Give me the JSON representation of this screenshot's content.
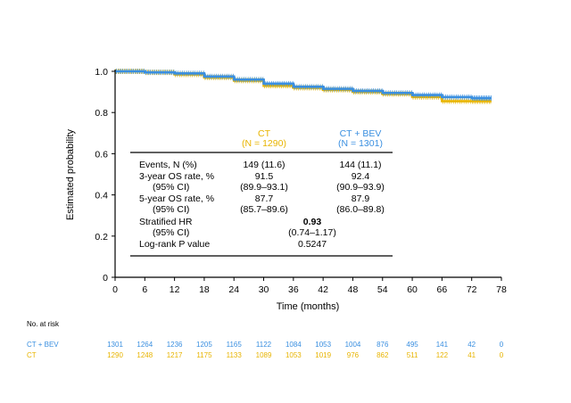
{
  "colors": {
    "ct": "#e8b400",
    "ctbev": "#3a8fe0",
    "axis": "#000000"
  },
  "chart_data": {
    "type": "line",
    "title": "",
    "xlabel": "Time (months)",
    "ylabel": "Estimated probability",
    "xlim": [
      0,
      78
    ],
    "ylim": [
      0,
      1.0
    ],
    "x_ticks": [
      "0",
      "6",
      "12",
      "18",
      "24",
      "30",
      "36",
      "42",
      "48",
      "54",
      "60",
      "66",
      "72",
      "78"
    ],
    "y_ticks": [
      "0",
      "0.2",
      "0.4",
      "0.6",
      "0.8",
      "1.0"
    ],
    "grid": false,
    "series": [
      {
        "name": "CT",
        "color": "#e8b400",
        "x": [
          0,
          6,
          12,
          18,
          24,
          30,
          36,
          42,
          48,
          54,
          60,
          66,
          72,
          76
        ],
        "y": [
          1.0,
          0.995,
          0.985,
          0.97,
          0.955,
          0.93,
          0.92,
          0.91,
          0.9,
          0.89,
          0.875,
          0.855,
          0.855,
          0.855
        ]
      },
      {
        "name": "CT + BEV",
        "color": "#3a8fe0",
        "x": [
          0,
          6,
          12,
          18,
          24,
          30,
          36,
          42,
          48,
          54,
          60,
          66,
          72,
          76
        ],
        "y": [
          1.0,
          0.995,
          0.99,
          0.975,
          0.96,
          0.94,
          0.925,
          0.915,
          0.905,
          0.895,
          0.885,
          0.875,
          0.87,
          0.87
        ]
      }
    ],
    "legend_table": {
      "ct_header": "CT",
      "ct_n": "(N = 1290)",
      "ctbev_header": "CT + BEV",
      "ctbev_n": "(N = 1301)",
      "rows": [
        {
          "label": "Events, N (%)",
          "ct": "149 (11.6)",
          "ctbev": "144 (11.1)"
        },
        {
          "label": "3-year OS rate, %",
          "ct": "91.5",
          "ctbev": "92.4"
        },
        {
          "label": "(95% CI)",
          "ct": "(89.9–93.1)",
          "ctbev": "(90.9–93.9)"
        },
        {
          "label": "5-year OS rate, %",
          "ct": "87.7",
          "ctbev": "87.9"
        },
        {
          "label": "(95% CI)",
          "ct": "(85.7–89.6)",
          "ctbev": "(86.0–89.8)"
        }
      ],
      "hr_label": "Stratified HR",
      "hr_value": "0.93",
      "hr_ci_label": "(95% CI)",
      "hr_ci_value": "(0.74–1.17)",
      "logrank_label": "Log-rank P value",
      "logrank_value": "0.5247"
    },
    "risk_table": {
      "title": "No. at risk",
      "rows": [
        {
          "name": "CT + BEV",
          "color": "#3a8fe0",
          "values": [
            "1301",
            "1264",
            "1236",
            "1205",
            "1165",
            "1122",
            "1084",
            "1053",
            "1004",
            "876",
            "495",
            "141",
            "42",
            "0"
          ]
        },
        {
          "name": "CT",
          "color": "#e8b400",
          "values": [
            "1290",
            "1248",
            "1217",
            "1175",
            "1133",
            "1089",
            "1053",
            "1019",
            "976",
            "862",
            "511",
            "122",
            "41",
            "0"
          ]
        }
      ]
    }
  }
}
